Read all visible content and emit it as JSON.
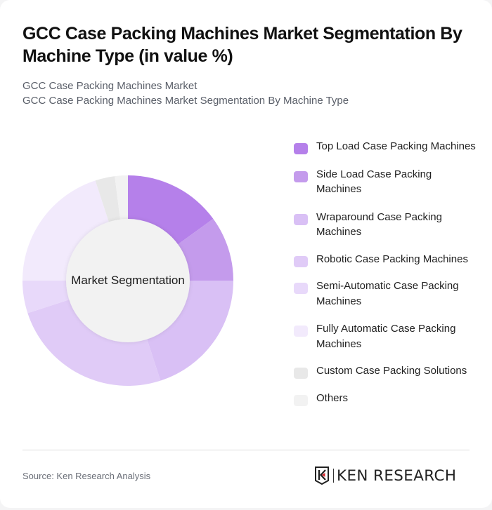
{
  "header": {
    "title": "GCC Case Packing Machines Market Segmentation By Machine Type (in value %)",
    "subtitle_line1": "GCC Case Packing Machines Market",
    "subtitle_line2": "GCC Case Packing Machines Market Segmentation By Machine Type"
  },
  "chart": {
    "center_label": "Market Segmentation"
  },
  "legend": {
    "items": [
      {
        "label": "Top Load Case Packing Machines",
        "color": "#b580ea"
      },
      {
        "label": "Side Load Case Packing Machines",
        "color": "#c49bec"
      },
      {
        "label": "Wraparound Case Packing Machines",
        "color": "#d9c0f5"
      },
      {
        "label": "Robotic Case Packing Machines",
        "color": "#e0cbf7"
      },
      {
        "label": "Semi-Automatic Case Packing Machines",
        "color": "#e8d9fa"
      },
      {
        "label": "Fully Automatic Case Packing Machines",
        "color": "#f2eafc"
      },
      {
        "label": "Custom Case Packing Solutions",
        "color": "#e8e8e8"
      },
      {
        "label": "Others",
        "color": "#f2f2f2"
      }
    ]
  },
  "footer": {
    "source": "Source: Ken Research Analysis",
    "logo_text": "KEN RESEARCH"
  },
  "chart_data": {
    "type": "pie",
    "subtype": "donut",
    "title": "GCC Case Packing Machines Market Segmentation By Machine Type (in value %)",
    "center_label": "Market Segmentation",
    "categories": [
      "Top Load Case Packing Machines",
      "Side Load Case Packing Machines",
      "Wraparound Case Packing Machines",
      "Robotic Case Packing Machines",
      "Semi-Automatic Case Packing Machines",
      "Fully Automatic Case Packing Machines",
      "Custom Case Packing Solutions",
      "Others"
    ],
    "values": [
      15,
      10,
      20,
      25,
      5,
      20,
      3,
      2
    ],
    "colors": [
      "#b580ea",
      "#c49bec",
      "#d9c0f5",
      "#e0cbf7",
      "#e8d9fa",
      "#f2eafc",
      "#e8e8e8",
      "#f2f2f2"
    ],
    "unit": "%",
    "legend_position": "right",
    "start_angle": "12 o'clock, clockwise"
  }
}
